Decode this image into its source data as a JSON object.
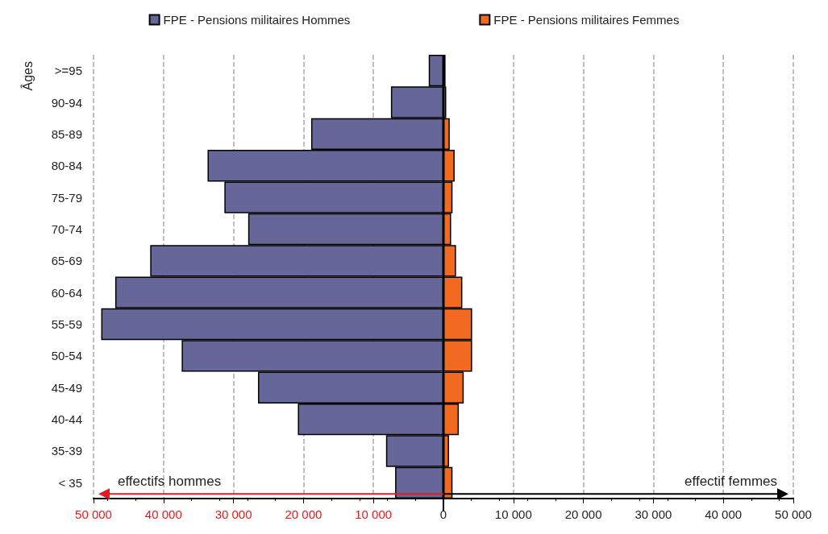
{
  "chart_data": {
    "type": "bar",
    "orientation": "horizontal",
    "stacked": true,
    "ylabel": "Âges",
    "categories": [
      ">=95",
      "90-94",
      "85-89",
      "80-84",
      "75-79",
      "70-74",
      "65-69",
      "60-64",
      "55-59",
      "50-54",
      "45-49",
      "40-44",
      "35-39",
      "< 35"
    ],
    "series": [
      {
        "name": "FPE - Pensions militaires Hommes",
        "color": "#666699",
        "values": [
          -2100,
          -7500,
          -18900,
          -33700,
          -31300,
          -27900,
          -41900,
          -46900,
          -48900,
          -37400,
          -26500,
          -20800,
          -8200,
          -6900
        ]
      },
      {
        "name": "FPE - Pensions militaires Femmes",
        "color": "#f26a22",
        "values": [
          300,
          400,
          900,
          1600,
          1300,
          1100,
          1800,
          2700,
          4100,
          4100,
          2900,
          2200,
          800,
          1300
        ]
      }
    ],
    "xlim": [
      -50000,
      50000
    ],
    "xticks": [
      {
        "value": -50000,
        "label": "50 000"
      },
      {
        "value": -40000,
        "label": "40 000"
      },
      {
        "value": -30000,
        "label": "30 000"
      },
      {
        "value": -20000,
        "label": "20 000"
      },
      {
        "value": -10000,
        "label": "10 000"
      },
      0,
      {
        "value": 10000,
        "label": "10 000"
      },
      {
        "value": 20000,
        "label": "20 000"
      },
      {
        "value": 30000,
        "label": "30 000"
      },
      {
        "value": 40000,
        "label": "40 000"
      },
      {
        "value": 50000,
        "label": "50 000"
      }
    ],
    "grid": "x",
    "legend": "top",
    "annotations": [
      "effectifs hommes",
      "effectif femmes"
    ]
  }
}
